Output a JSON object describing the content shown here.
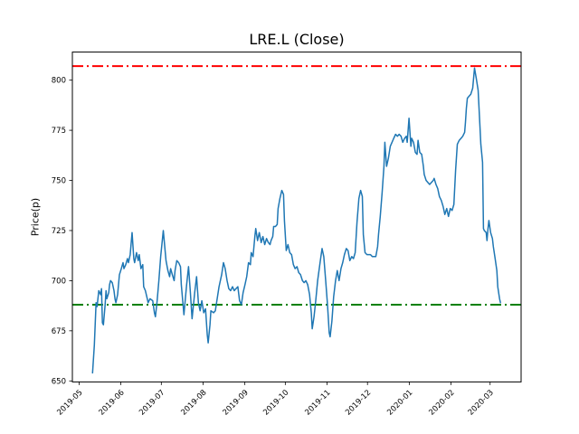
{
  "figure": {
    "background": "#ffffff"
  },
  "chart_data": {
    "type": "line",
    "title": "LRE.L (Close)",
    "xlabel": "",
    "ylabel": "Price(p)",
    "grid": false,
    "legend": null,
    "x_axis": {
      "unit": "days since 2019-05-01 (estimated from tick positions)",
      "tick_labels": [
        "2019-05",
        "2019-06",
        "2019-07",
        "2019-08",
        "2019-09",
        "2019-10",
        "2019-11",
        "2019-12",
        "2020-01",
        "2020-02",
        "2020-03"
      ],
      "tick_day_offsets": [
        0,
        31,
        61,
        92,
        123,
        153,
        184,
        214,
        245,
        276,
        305
      ],
      "xlim_days": [
        -5,
        328
      ],
      "tick_label_rotation_deg": 45
    },
    "y_axis": {
      "tick_labels": [
        "650",
        "675",
        "700",
        "725",
        "750",
        "775",
        "800"
      ],
      "tick_values": [
        650,
        675,
        700,
        725,
        750,
        775,
        800
      ],
      "ylim": [
        649.5,
        814
      ]
    },
    "hlines": [
      {
        "name": "upper-threshold",
        "value": 807,
        "color": "#ff0000",
        "style": "dashdot",
        "line_width": 2
      },
      {
        "name": "lower-threshold",
        "value": 688,
        "color": "#008000",
        "style": "dashdot",
        "line_width": 2
      }
    ],
    "series": [
      {
        "name": "Close",
        "color": "#1f77b4",
        "style": "solid",
        "line_width": 1.5,
        "points": [
          [
            10.0,
            654
          ],
          [
            11.3,
            668
          ],
          [
            12.6,
            689
          ],
          [
            13.3,
            687
          ],
          [
            14.6,
            695
          ],
          [
            16.0,
            693
          ],
          [
            16.6,
            696
          ],
          [
            17.3,
            679
          ],
          [
            18.0,
            678
          ],
          [
            19.3,
            688
          ],
          [
            20.0,
            695
          ],
          [
            20.6,
            691
          ],
          [
            22.0,
            694
          ],
          [
            22.6,
            698
          ],
          [
            23.3,
            700
          ],
          [
            24.6,
            699
          ],
          [
            25.9,
            695
          ],
          [
            26.6,
            691
          ],
          [
            27.3,
            689
          ],
          [
            28.6,
            693
          ],
          [
            29.9,
            703
          ],
          [
            31.3,
            706
          ],
          [
            32.6,
            709
          ],
          [
            33.3,
            706
          ],
          [
            34.6,
            708
          ],
          [
            35.9,
            711
          ],
          [
            36.6,
            709
          ],
          [
            37.9,
            713
          ],
          [
            39.3,
            724
          ],
          [
            40.6,
            711
          ],
          [
            41.2,
            709
          ],
          [
            42.6,
            714
          ],
          [
            43.9,
            710
          ],
          [
            44.6,
            713
          ],
          [
            45.9,
            706
          ],
          [
            47.2,
            708
          ],
          [
            47.9,
            697
          ],
          [
            49.2,
            695
          ],
          [
            50.6,
            691
          ],
          [
            51.2,
            689
          ],
          [
            52.6,
            691
          ],
          [
            54.6,
            690
          ],
          [
            55.9,
            684
          ],
          [
            56.6,
            682
          ],
          [
            57.9,
            690
          ],
          [
            59.2,
            700
          ],
          [
            60.5,
            712
          ],
          [
            62.5,
            725
          ],
          [
            64.5,
            710
          ],
          [
            65.9,
            705
          ],
          [
            67.2,
            702
          ],
          [
            67.9,
            706
          ],
          [
            69.2,
            703
          ],
          [
            70.5,
            700
          ],
          [
            71.2,
            705
          ],
          [
            72.5,
            710
          ],
          [
            73.9,
            709
          ],
          [
            75.2,
            707
          ],
          [
            75.8,
            698
          ],
          [
            77.8,
            683
          ],
          [
            79.8,
            698
          ],
          [
            81.2,
            707
          ],
          [
            82.5,
            695
          ],
          [
            83.8,
            681
          ],
          [
            85.8,
            694
          ],
          [
            87.2,
            702
          ],
          [
            88.5,
            689
          ],
          [
            89.8,
            685
          ],
          [
            91.1,
            690
          ],
          [
            92.5,
            684
          ],
          [
            93.8,
            686
          ],
          [
            95.1,
            673
          ],
          [
            95.8,
            669
          ],
          [
            97.1,
            678
          ],
          [
            97.8,
            685
          ],
          [
            99.8,
            684
          ],
          [
            101.1,
            685
          ],
          [
            103.8,
            697
          ],
          [
            105.8,
            703
          ],
          [
            107.1,
            709
          ],
          [
            108.4,
            706
          ],
          [
            109.8,
            700
          ],
          [
            111.1,
            696
          ],
          [
            112.4,
            695
          ],
          [
            113.8,
            697
          ],
          [
            115.1,
            695
          ],
          [
            116.4,
            696
          ],
          [
            117.8,
            697
          ],
          [
            119.1,
            690
          ],
          [
            120.4,
            688
          ],
          [
            121.7,
            694
          ],
          [
            123.1,
            698
          ],
          [
            124.4,
            702
          ],
          [
            125.7,
            709
          ],
          [
            127.1,
            708
          ],
          [
            127.7,
            714
          ],
          [
            129.1,
            712
          ],
          [
            130.4,
            722
          ],
          [
            131.1,
            726
          ],
          [
            132.4,
            720
          ],
          [
            133.7,
            724
          ],
          [
            135.1,
            719
          ],
          [
            136.4,
            722
          ],
          [
            137.7,
            718
          ],
          [
            139.1,
            721
          ],
          [
            140.4,
            719
          ],
          [
            141.7,
            718
          ],
          [
            142.4,
            720
          ],
          [
            143.7,
            722
          ],
          [
            144.4,
            727
          ],
          [
            145.7,
            727
          ],
          [
            147.0,
            728
          ],
          [
            147.7,
            736
          ],
          [
            149.0,
            741
          ],
          [
            150.4,
            745
          ],
          [
            151.7,
            743
          ],
          [
            152.4,
            730
          ],
          [
            153.7,
            715
          ],
          [
            155.0,
            718
          ],
          [
            156.3,
            714
          ],
          [
            157.7,
            713
          ],
          [
            159.0,
            708
          ],
          [
            160.3,
            706
          ],
          [
            161.7,
            707
          ],
          [
            163.0,
            704
          ],
          [
            164.3,
            703
          ],
          [
            165.7,
            700
          ],
          [
            167.0,
            699
          ],
          [
            168.3,
            700
          ],
          [
            169.6,
            698
          ],
          [
            171.0,
            693
          ],
          [
            172.3,
            684
          ],
          [
            173.0,
            676
          ],
          [
            174.3,
            682
          ],
          [
            175.6,
            690
          ],
          [
            177.0,
            700
          ],
          [
            179.0,
            710
          ],
          [
            180.3,
            716
          ],
          [
            181.6,
            712
          ],
          [
            183.0,
            700
          ],
          [
            184.3,
            688
          ],
          [
            185.6,
            674
          ],
          [
            186.3,
            672
          ],
          [
            187.6,
            680
          ],
          [
            188.9,
            692
          ],
          [
            190.3,
            700
          ],
          [
            191.6,
            705
          ],
          [
            192.9,
            700
          ],
          [
            194.3,
            706
          ],
          [
            195.6,
            709
          ],
          [
            196.9,
            713
          ],
          [
            198.3,
            716
          ],
          [
            199.6,
            715
          ],
          [
            200.9,
            710
          ],
          [
            202.3,
            712
          ],
          [
            203.6,
            711
          ],
          [
            204.9,
            714
          ],
          [
            206.2,
            729
          ],
          [
            207.6,
            741
          ],
          [
            208.9,
            745
          ],
          [
            210.2,
            742
          ],
          [
            210.9,
            723
          ],
          [
            212.2,
            714
          ],
          [
            213.6,
            713
          ],
          [
            214.9,
            713
          ],
          [
            216.2,
            713
          ],
          [
            217.6,
            712
          ],
          [
            218.9,
            712
          ],
          [
            220.2,
            712
          ],
          [
            221.5,
            717
          ],
          [
            222.2,
            723
          ],
          [
            223.5,
            732
          ],
          [
            224.9,
            744
          ],
          [
            226.2,
            757
          ],
          [
            226.9,
            769
          ],
          [
            228.2,
            757
          ],
          [
            229.5,
            761
          ],
          [
            230.9,
            767
          ],
          [
            232.2,
            769
          ],
          [
            233.5,
            771
          ],
          [
            234.9,
            773
          ],
          [
            236.2,
            772
          ],
          [
            237.5,
            773
          ],
          [
            238.9,
            772
          ],
          [
            240.2,
            769
          ],
          [
            241.5,
            771
          ],
          [
            242.8,
            772
          ],
          [
            243.5,
            769
          ],
          [
            244.8,
            781
          ],
          [
            246.2,
            767
          ],
          [
            246.8,
            771
          ],
          [
            248.2,
            769
          ],
          [
            249.5,
            764
          ],
          [
            250.8,
            763
          ],
          [
            251.5,
            770
          ],
          [
            252.8,
            764
          ],
          [
            254.2,
            763
          ],
          [
            255.5,
            757
          ],
          [
            256.1,
            753
          ],
          [
            257.5,
            750
          ],
          [
            258.8,
            749
          ],
          [
            260.1,
            748
          ],
          [
            261.5,
            749
          ],
          [
            262.8,
            750
          ],
          [
            263.5,
            751
          ],
          [
            264.8,
            748
          ],
          [
            266.1,
            746
          ],
          [
            267.4,
            742
          ],
          [
            268.8,
            740
          ],
          [
            270.1,
            737
          ],
          [
            271.4,
            733
          ],
          [
            272.8,
            736
          ],
          [
            274.1,
            732
          ],
          [
            275.4,
            736
          ],
          [
            276.8,
            735
          ],
          [
            278.1,
            738
          ],
          [
            279.4,
            755
          ],
          [
            280.7,
            768
          ],
          [
            282.1,
            770
          ],
          [
            283.4,
            771
          ],
          [
            284.7,
            772
          ],
          [
            286.1,
            774
          ],
          [
            286.7,
            779
          ],
          [
            287.4,
            786
          ],
          [
            288.1,
            791
          ],
          [
            289.4,
            792
          ],
          [
            290.7,
            793
          ],
          [
            292.1,
            796
          ],
          [
            293.4,
            806
          ],
          [
            294.7,
            801
          ],
          [
            296.1,
            795
          ],
          [
            297.4,
            778
          ],
          [
            298.1,
            768
          ],
          [
            299.4,
            759
          ],
          [
            300.1,
            726
          ],
          [
            300.7,
            725
          ],
          [
            302.1,
            724
          ],
          [
            302.7,
            720
          ],
          [
            303.4,
            726
          ],
          [
            304.1,
            730
          ],
          [
            305.4,
            724
          ],
          [
            306.7,
            721
          ],
          [
            307.4,
            717
          ],
          [
            308.7,
            711
          ],
          [
            310.0,
            705
          ],
          [
            310.7,
            697
          ],
          [
            312.0,
            691
          ],
          [
            312.7,
            689
          ]
        ]
      }
    ]
  }
}
